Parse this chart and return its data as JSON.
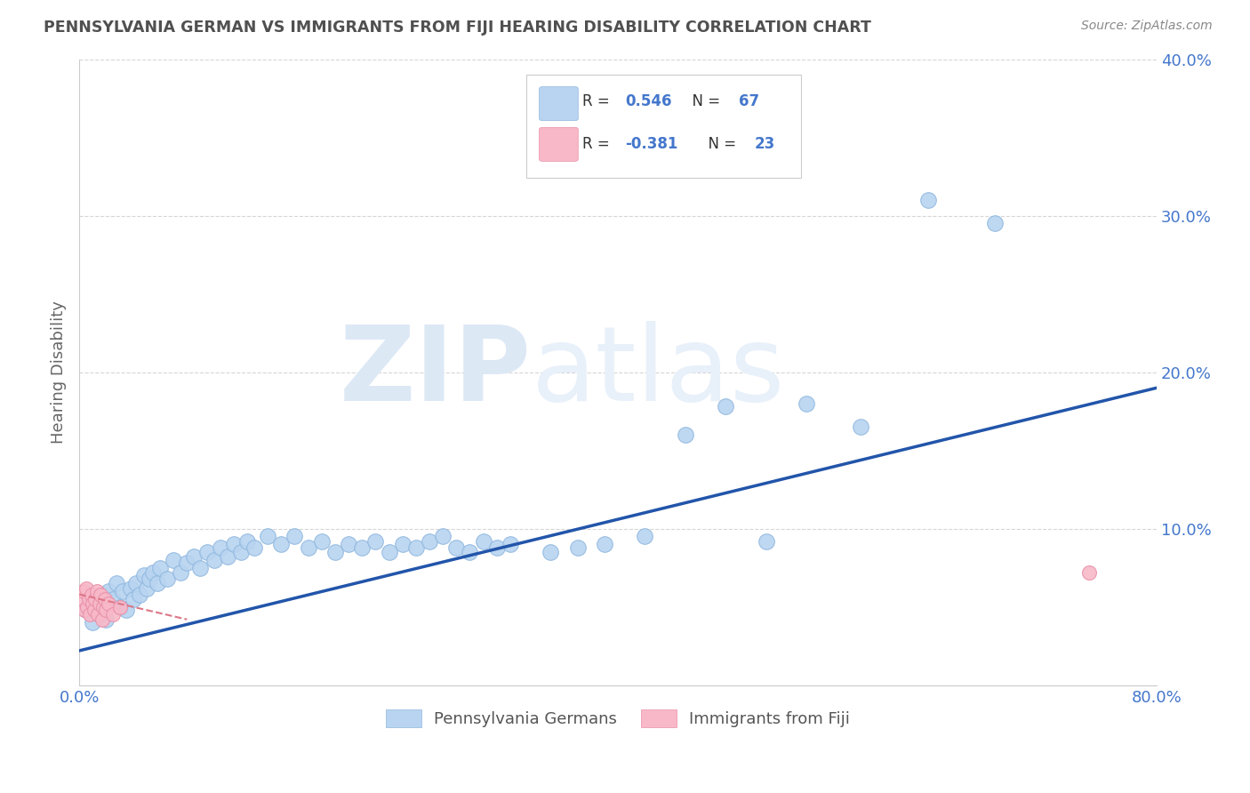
{
  "title": "PENNSYLVANIA GERMAN VS IMMIGRANTS FROM FIJI HEARING DISABILITY CORRELATION CHART",
  "source": "Source: ZipAtlas.com",
  "ylabel": "Hearing Disability",
  "xlim": [
    0.0,
    0.8
  ],
  "ylim": [
    0.0,
    0.4
  ],
  "blue_R": 0.546,
  "blue_N": 67,
  "pink_R": -0.381,
  "pink_N": 23,
  "blue_color": "#b8d4f0",
  "blue_edge": "#90b8e0",
  "pink_color": "#f8b8c8",
  "pink_edge": "#e890a8",
  "blue_line_color": "#2255aa",
  "pink_line_color": "#dd7788",
  "background_color": "#ffffff",
  "watermark_color": "#dde8f5",
  "legend_color": "#4477cc",
  "title_color": "#505050",
  "source_color": "#888888",
  "blue_x": [
    0.005,
    0.008,
    0.01,
    0.012,
    0.015,
    0.018,
    0.02,
    0.022,
    0.025,
    0.028,
    0.03,
    0.032,
    0.035,
    0.038,
    0.04,
    0.042,
    0.045,
    0.048,
    0.05,
    0.052,
    0.055,
    0.058,
    0.06,
    0.065,
    0.07,
    0.075,
    0.08,
    0.085,
    0.09,
    0.095,
    0.1,
    0.105,
    0.11,
    0.115,
    0.12,
    0.125,
    0.13,
    0.14,
    0.15,
    0.16,
    0.17,
    0.18,
    0.19,
    0.2,
    0.21,
    0.22,
    0.23,
    0.24,
    0.25,
    0.26,
    0.27,
    0.28,
    0.29,
    0.3,
    0.31,
    0.32,
    0.35,
    0.37,
    0.39,
    0.42,
    0.45,
    0.48,
    0.51,
    0.54,
    0.58,
    0.63,
    0.68
  ],
  "blue_y": [
    0.048,
    0.052,
    0.04,
    0.055,
    0.045,
    0.058,
    0.042,
    0.06,
    0.055,
    0.065,
    0.05,
    0.06,
    0.048,
    0.062,
    0.055,
    0.065,
    0.058,
    0.07,
    0.062,
    0.068,
    0.072,
    0.065,
    0.075,
    0.068,
    0.08,
    0.072,
    0.078,
    0.082,
    0.075,
    0.085,
    0.08,
    0.088,
    0.082,
    0.09,
    0.085,
    0.092,
    0.088,
    0.095,
    0.09,
    0.095,
    0.088,
    0.092,
    0.085,
    0.09,
    0.088,
    0.092,
    0.085,
    0.09,
    0.088,
    0.092,
    0.095,
    0.088,
    0.085,
    0.092,
    0.088,
    0.09,
    0.085,
    0.088,
    0.09,
    0.095,
    0.16,
    0.178,
    0.092,
    0.18,
    0.165,
    0.31,
    0.295
  ],
  "pink_x": [
    0.002,
    0.003,
    0.004,
    0.005,
    0.006,
    0.007,
    0.008,
    0.009,
    0.01,
    0.011,
    0.012,
    0.013,
    0.014,
    0.015,
    0.016,
    0.017,
    0.018,
    0.019,
    0.02,
    0.022,
    0.025,
    0.03,
    0.75
  ],
  "pink_y": [
    0.055,
    0.06,
    0.048,
    0.062,
    0.05,
    0.055,
    0.045,
    0.058,
    0.052,
    0.048,
    0.055,
    0.06,
    0.045,
    0.052,
    0.058,
    0.042,
    0.05,
    0.055,
    0.048,
    0.052,
    0.045,
    0.05,
    0.072
  ],
  "blue_line_x": [
    0.0,
    0.8
  ],
  "blue_line_y": [
    0.022,
    0.19
  ],
  "pink_line_x": [
    0.0,
    0.08
  ],
  "pink_line_y": [
    0.058,
    0.042
  ]
}
